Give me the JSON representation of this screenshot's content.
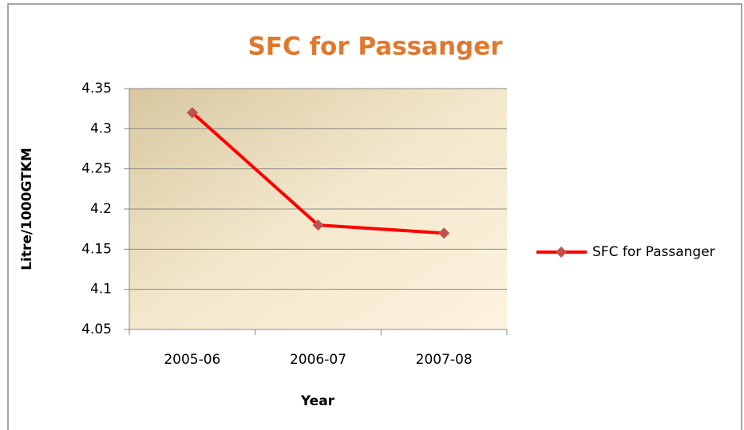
{
  "chart_data": {
    "type": "line",
    "title": "SFC for Passanger",
    "x_label": "Year",
    "y_label": "Litre/1000GTKM",
    "categories": [
      "2005-06",
      "2006-07",
      "2007-08"
    ],
    "series": [
      {
        "name": "SFC for Passanger",
        "color": "#ff0000",
        "marker_color": "#c0504d",
        "values": [
          4.32,
          4.18,
          4.17
        ]
      }
    ],
    "ylim": [
      4.05,
      4.35
    ],
    "yticks": [
      4.05,
      4.1,
      4.15,
      4.2,
      4.25,
      4.3,
      4.35
    ],
    "grid": true,
    "legend": "right"
  }
}
